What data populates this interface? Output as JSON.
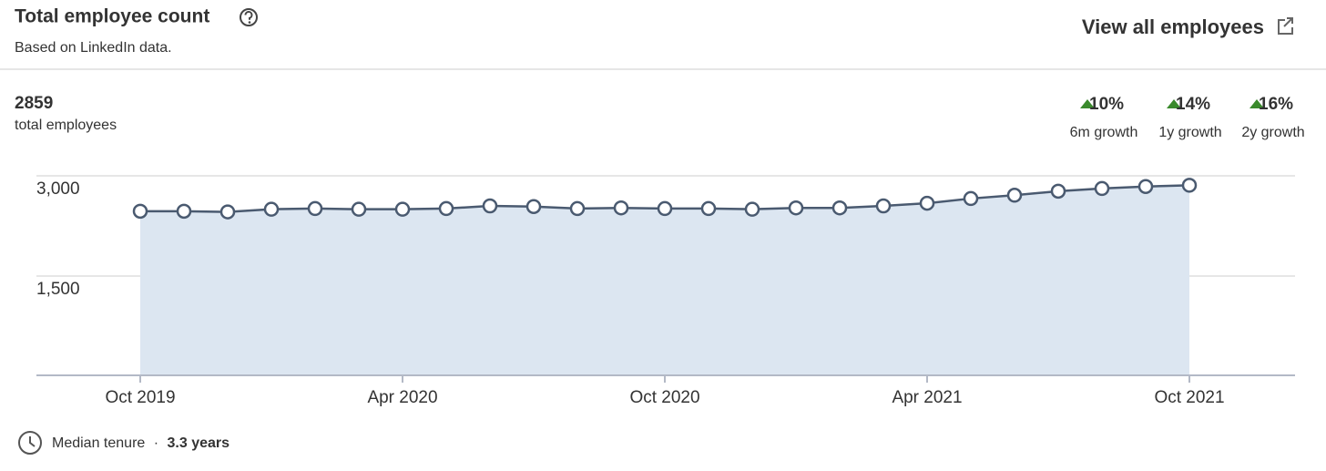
{
  "header": {
    "title": "Total employee count",
    "subtitle": "Based on LinkedIn data.",
    "link": "View all employees"
  },
  "summary": {
    "total": 2859,
    "total_label": "total employees",
    "growth": [
      {
        "value": "10%",
        "label": "6m growth"
      },
      {
        "value": "14%",
        "label": "1y growth"
      },
      {
        "value": "16%",
        "label": "2y growth"
      }
    ]
  },
  "chart_data": {
    "type": "area",
    "categories": [
      "Oct 2019",
      null,
      null,
      null,
      null,
      null,
      "Apr 2020",
      null,
      null,
      null,
      null,
      null,
      "Oct 2020",
      null,
      null,
      null,
      null,
      null,
      "Apr 2021",
      null,
      null,
      null,
      null,
      null,
      "Oct 2021"
    ],
    "values": [
      2470,
      2470,
      2460,
      2500,
      2510,
      2500,
      2500,
      2510,
      2550,
      2540,
      2510,
      2520,
      2510,
      2510,
      2500,
      2520,
      2520,
      2550,
      2590,
      2660,
      2710,
      2770,
      2810,
      2840,
      2859
    ],
    "color": "#4a5a70",
    "fill": "#dce6f1",
    "ylim": [
      0,
      3000
    ],
    "yticks": [
      {
        "value": 1500,
        "label": "1,500"
      },
      {
        "value": 3000,
        "label": "3,000"
      }
    ],
    "grid": true
  },
  "footer": {
    "label": "Median tenure",
    "separator": "·",
    "value": "3.3 years"
  }
}
